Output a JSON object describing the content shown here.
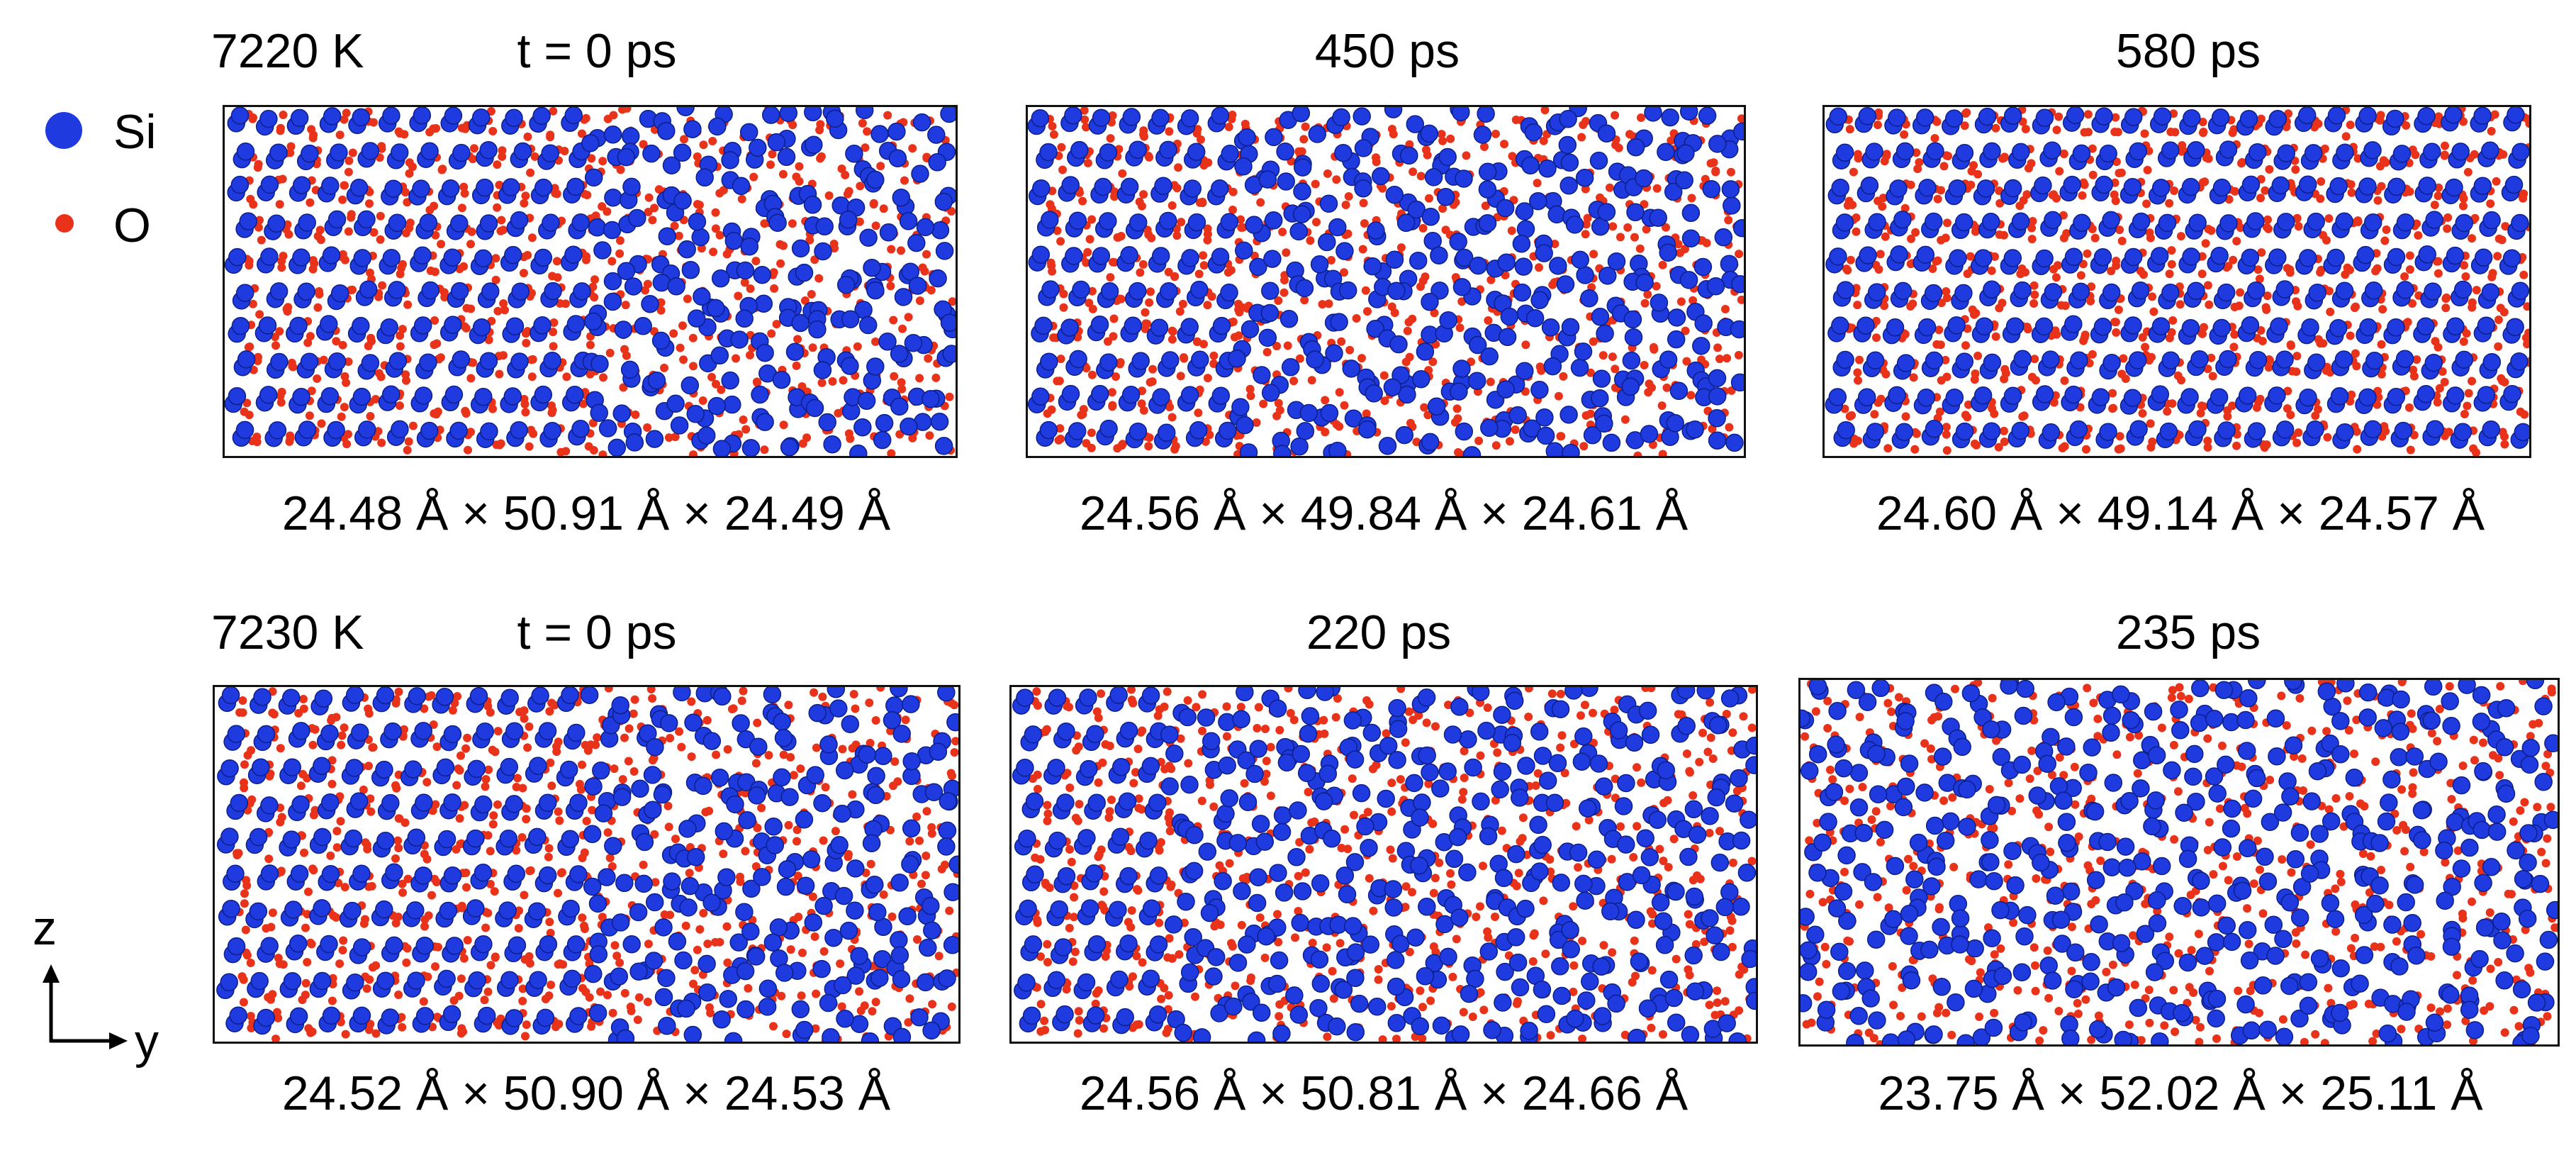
{
  "colors": {
    "si": "#1f3be0",
    "si_edge": "#0d1f8a",
    "o": "#e8321a",
    "frame": "#111111"
  },
  "legend": {
    "items": [
      {
        "label": "Si",
        "color": "#1f3be0"
      },
      {
        "label": "O",
        "color": "#e8321a"
      }
    ]
  },
  "axes": {
    "vertical": "z",
    "horizontal": "y"
  },
  "rows": [
    {
      "temperature": "7220 K",
      "panels": [
        {
          "time": "t = 0 ps",
          "dims": "24.48 Å × 50.91 Å × 24.49 Å",
          "disorder_fraction": 0.5
        },
        {
          "time": "450 ps",
          "dims": "24.56 Å × 49.84 Å × 24.61 Å",
          "disorder_fraction": 0.3
        },
        {
          "time": "580 ps",
          "dims": "24.60 Å × 49.14 Å × 24.57 Å",
          "disorder_fraction": 0.0
        }
      ]
    },
    {
      "temperature": "7230 K",
      "panels": [
        {
          "time": "t = 0 ps",
          "dims": "24.52 Å × 50.90 Å × 24.53 Å",
          "disorder_fraction": 0.5
        },
        {
          "time": "220 ps",
          "dims": "24.56 Å × 50.81 Å × 24.66 Å",
          "disorder_fraction": 0.8
        },
        {
          "time": "235 ps",
          "dims": "23.75 Å × 52.02 Å × 25.11 Å",
          "disorder_fraction": 1.0
        }
      ]
    }
  ]
}
